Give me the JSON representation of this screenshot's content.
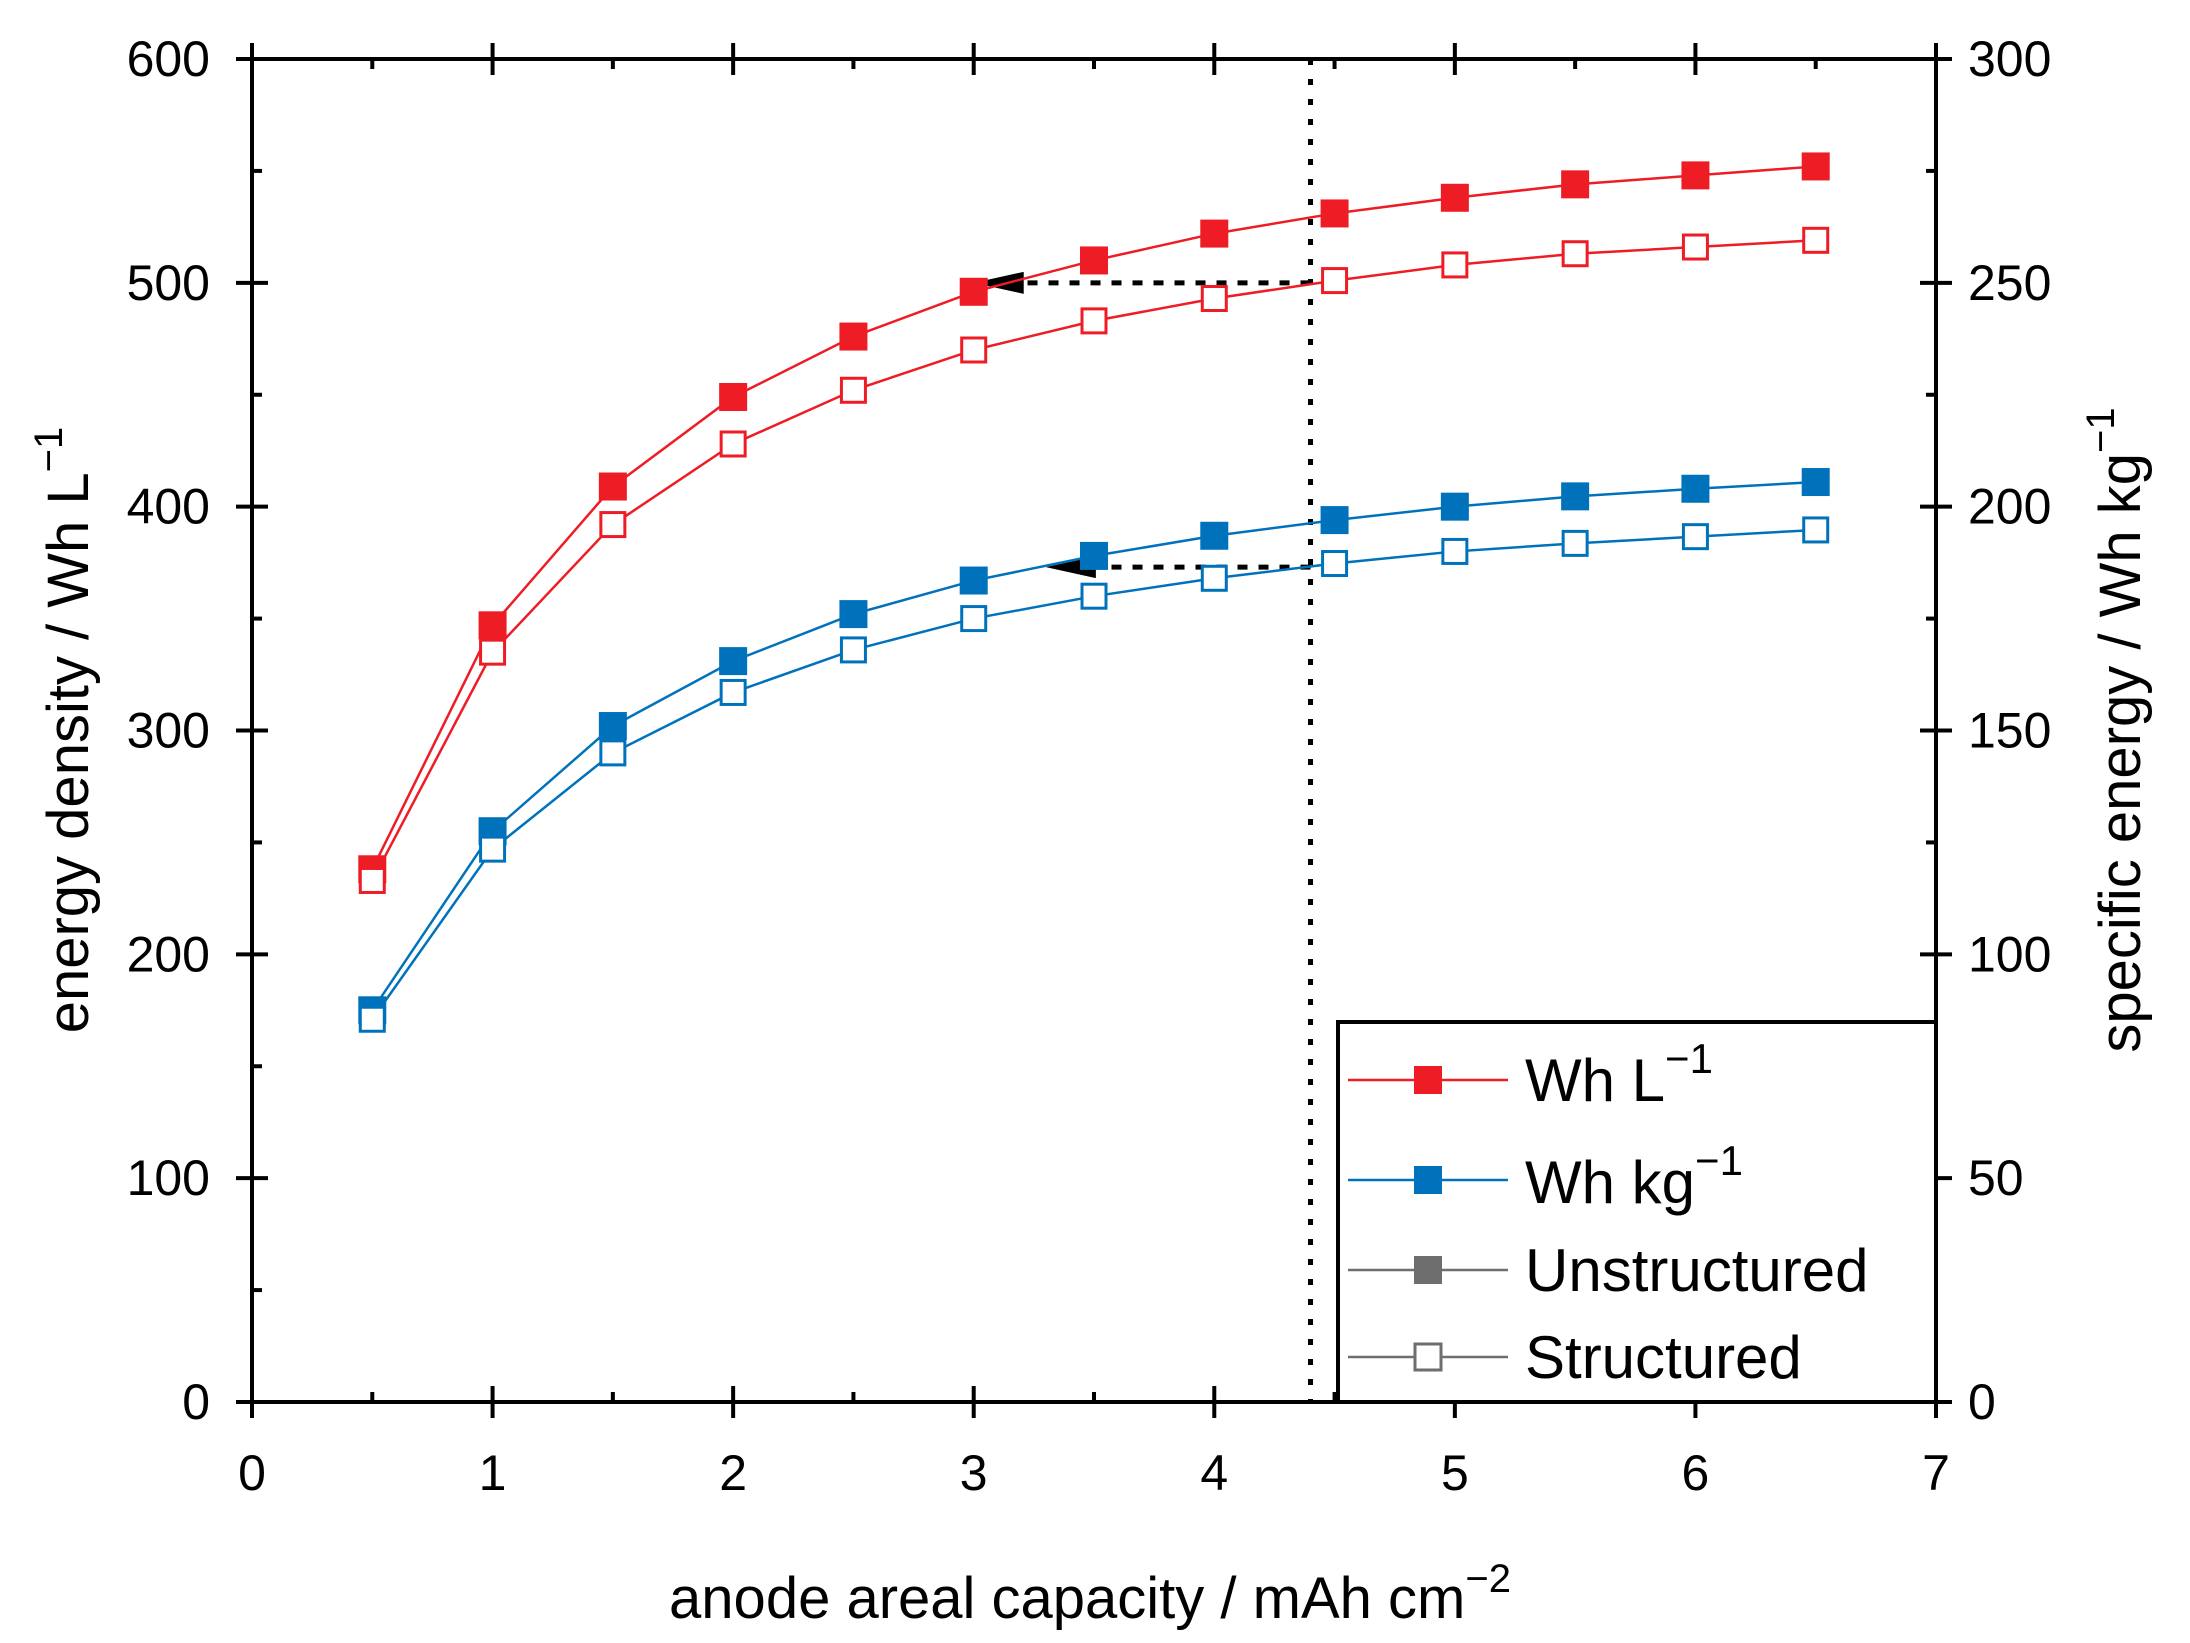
{
  "chart_data": {
    "type": "line",
    "title": "",
    "xlabel": "anode areal capacity / mAh cm",
    "xlabel_sup": "−2",
    "ylabel_left": "energy density  / Wh L",
    "ylabel_left_sup": "−1",
    "ylabel_right": "specific energy / Wh kg",
    "ylabel_right_sup": "−1",
    "xlim": [
      0,
      7
    ],
    "ylim_left": [
      0,
      600
    ],
    "ylim_right": [
      0,
      300
    ],
    "x_ticks": [
      "0",
      "1",
      "2",
      "3",
      "4",
      "5",
      "6",
      "7"
    ],
    "y_left_ticks": [
      "0",
      "100",
      "200",
      "300",
      "400",
      "500",
      "600"
    ],
    "y_right_ticks": [
      "0",
      "50",
      "100",
      "150",
      "200",
      "250",
      "300"
    ],
    "grid": false,
    "legend_position": "bottom-right",
    "x": [
      0.5,
      1,
      1.5,
      2,
      2.5,
      3,
      3.5,
      4,
      4.5,
      5,
      5.5,
      6,
      6.5
    ],
    "series": [
      {
        "name": "Wh L⁻¹ Unstructured",
        "axis": "left",
        "color": "#ee1c25",
        "marker": "filled-square",
        "values": [
          238,
          347,
          409,
          449,
          476,
          496,
          510,
          522,
          531,
          538,
          544,
          548,
          552
        ]
      },
      {
        "name": "Wh L⁻¹ Structured",
        "axis": "left",
        "color": "#ee1c25",
        "marker": "open-square",
        "values": [
          233,
          335,
          392,
          428,
          452,
          470,
          483,
          493,
          501,
          508,
          513,
          516,
          519
        ]
      },
      {
        "name": "Wh kg⁻¹ Unstructured",
        "axis": "right",
        "color": "#0072bc",
        "marker": "filled-square",
        "values": [
          87.5,
          127.5,
          151,
          165.5,
          176,
          183.5,
          189,
          193.5,
          197,
          200,
          202.3,
          204,
          205.5
        ]
      },
      {
        "name": "Wh kg⁻¹ Structured",
        "axis": "right",
        "color": "#0072bc",
        "marker": "open-square",
        "values": [
          85.5,
          123.5,
          145,
          158.5,
          168,
          175,
          180,
          184,
          187.3,
          190,
          191.8,
          193.3,
          194.8
        ]
      }
    ],
    "annotations": {
      "vertical_line_x": 4.4,
      "arrow_red": {
        "from_x": 4.4,
        "to_x": 3.0,
        "y_left": 500
      },
      "arrow_blue": {
        "from_x": 4.4,
        "to_x": 3.3,
        "y_left": 373
      }
    },
    "legend": [
      {
        "label": "Wh L",
        "sup": "−1",
        "color": "#ee1c25",
        "marker": "filled-square"
      },
      {
        "label": "Wh kg",
        "sup": "−1",
        "color": "#0072bc",
        "marker": "filled-square"
      },
      {
        "label": "Unstructured",
        "sup": "",
        "color": "#6e6e6e",
        "marker": "filled-square"
      },
      {
        "label": "Structured",
        "sup": "",
        "color": "#6e6e6e",
        "marker": "open-square"
      }
    ]
  }
}
